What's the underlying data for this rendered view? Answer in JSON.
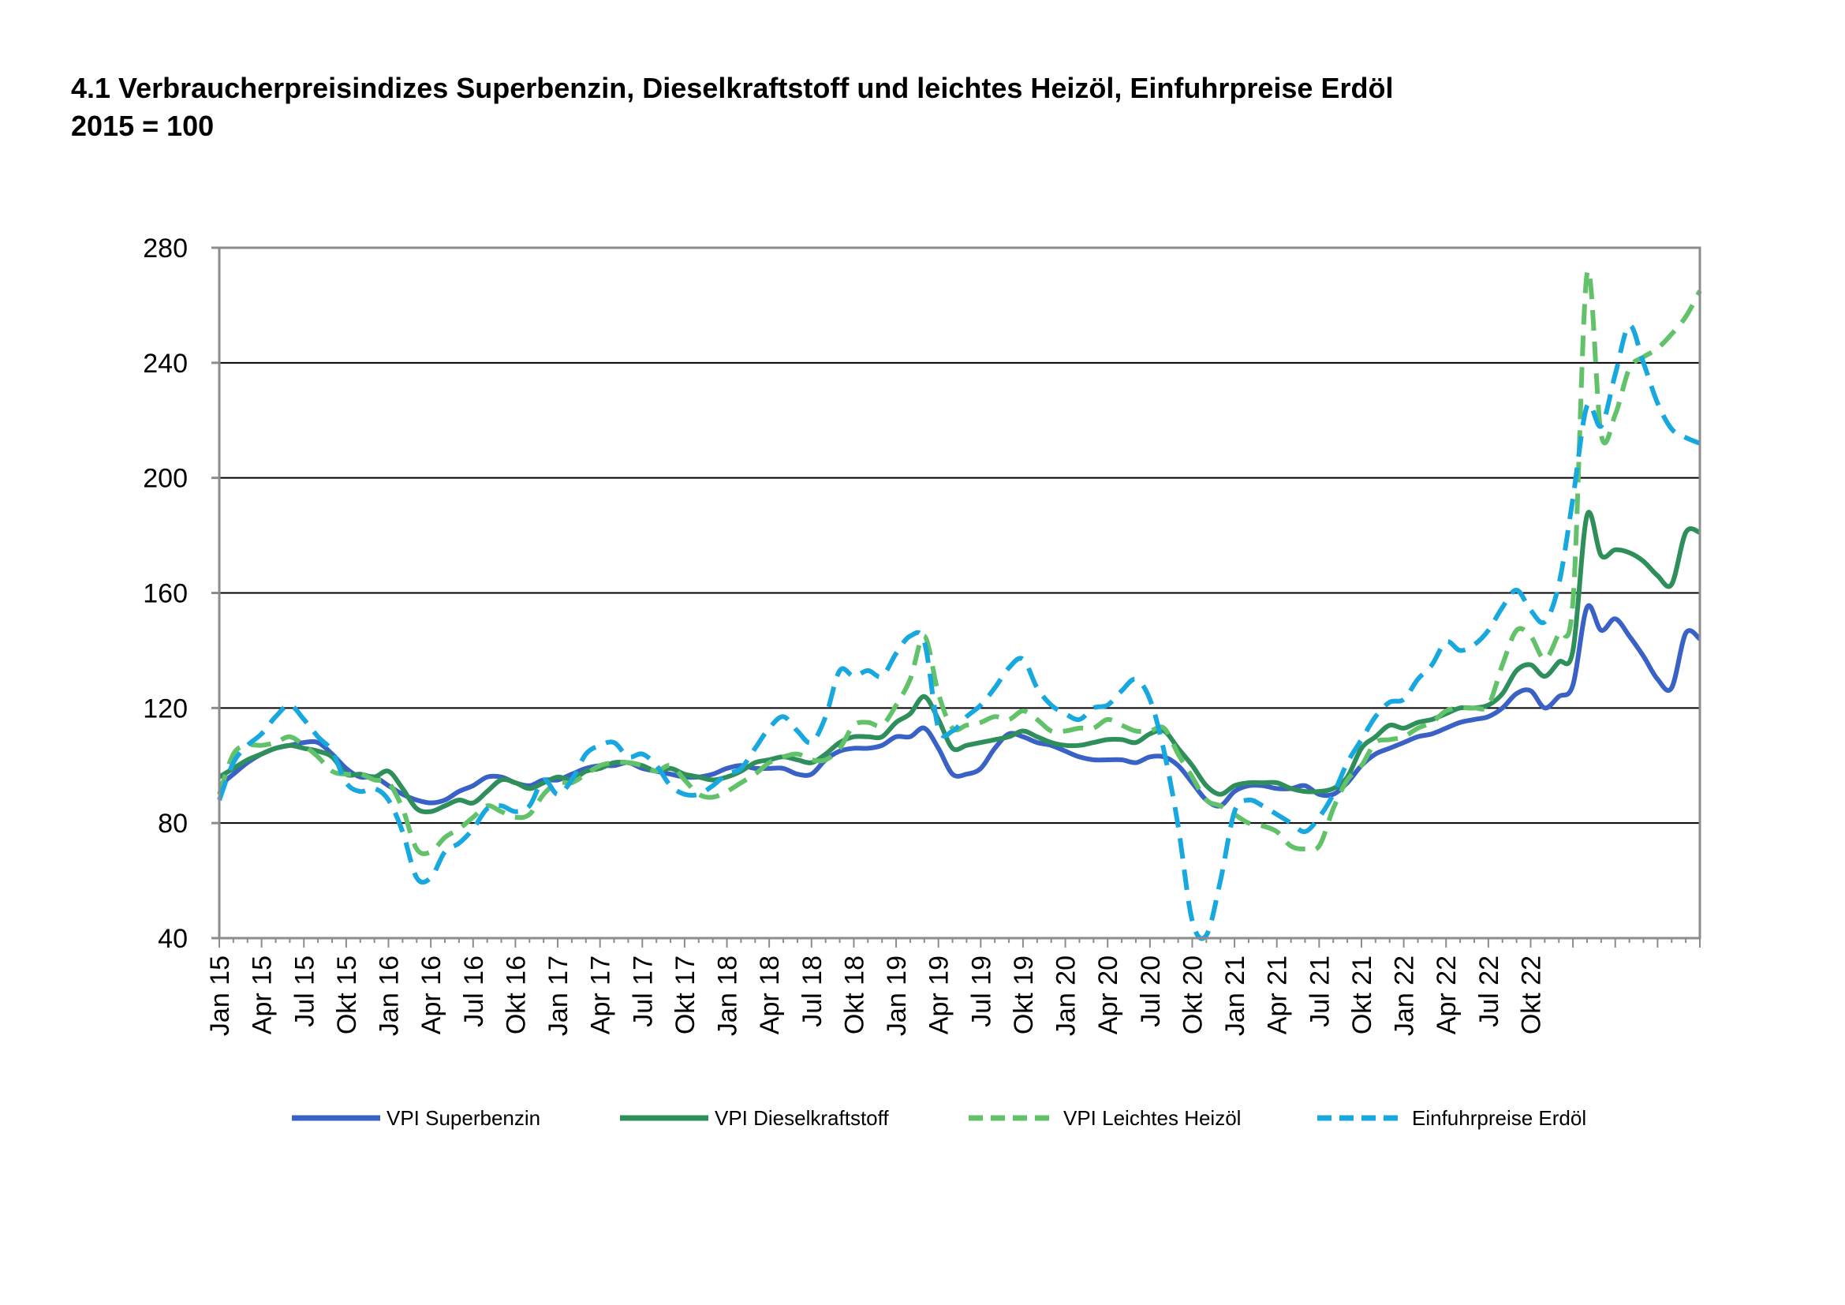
{
  "title": {
    "line1": "4.1 Verbraucherpreisindizes Superbenzin, Dieselkraftstoff und leichtes Heizöl, Einfuhrpreise Erdöl",
    "line2": "2015 = 100"
  },
  "chart_data": {
    "type": "line",
    "ylim": [
      40,
      280
    ],
    "yticks": [
      40,
      80,
      120,
      160,
      200,
      240,
      280
    ],
    "grid": true,
    "legend_position": "bottom",
    "x_tick_labels": [
      "Jan 15",
      "Apr 15",
      "Jul 15",
      "Okt 15",
      "Jan 16",
      "Apr 16",
      "Jul 16",
      "Okt 16",
      "Jan 17",
      "Apr 17",
      "Jul 17",
      "Okt 17",
      "Jan 18",
      "Apr 18",
      "Jul 18",
      "Okt 18",
      "Jan 19",
      "Apr 19",
      "Jul 19",
      "Okt 19",
      "Jan 20",
      "Apr 20",
      "Jul 20",
      "Okt 20",
      "Jan 21",
      "Apr 21",
      "Jul 21",
      "Okt 21",
      "Jan 22",
      "Apr 22",
      "Jul 22",
      "Okt 22"
    ],
    "series": [
      {
        "name": "VPI Superbenzin",
        "color": "#3a62c6",
        "dash": "solid",
        "values": [
          93,
          97,
          101,
          104,
          106,
          107,
          108,
          108,
          104,
          99,
          96,
          96,
          93,
          90,
          88,
          87,
          88,
          91,
          93,
          96,
          96,
          94,
          93,
          95,
          95,
          97,
          99,
          100,
          100,
          101,
          99,
          98,
          97,
          96,
          96,
          97,
          99,
          100,
          99,
          99,
          99,
          97,
          97,
          102,
          105,
          106,
          106,
          107,
          110,
          110,
          113,
          106,
          97,
          97,
          99,
          106,
          111,
          110,
          108,
          107,
          105,
          103,
          102,
          102,
          102,
          101,
          103,
          103,
          100,
          94,
          88,
          86,
          91,
          93,
          93,
          92,
          92,
          93,
          90,
          90,
          94,
          100,
          104,
          106,
          108,
          110,
          111,
          113,
          115,
          116,
          117,
          120,
          125,
          126,
          120,
          124,
          128,
          155,
          147,
          151,
          145,
          138,
          130,
          127,
          146,
          144
        ]
      },
      {
        "name": "VPI Dieselkraftstoff",
        "color": "#2f8f5b",
        "dash": "solid",
        "values": [
          96,
          99,
          102,
          104,
          106,
          107,
          106,
          105,
          103,
          97,
          97,
          96,
          98,
          92,
          85,
          84,
          86,
          88,
          87,
          91,
          95,
          94,
          92,
          94,
          96,
          95,
          98,
          99,
          101,
          101,
          100,
          98,
          99,
          97,
          96,
          95,
          96,
          98,
          101,
          102,
          103,
          102,
          101,
          104,
          108,
          110,
          110,
          110,
          115,
          118,
          124,
          116,
          106,
          107,
          108,
          109,
          110,
          112,
          110,
          108,
          107,
          107,
          108,
          109,
          109,
          108,
          111,
          112,
          106,
          100,
          93,
          90,
          93,
          94,
          94,
          94,
          92,
          91,
          91,
          92,
          96,
          106,
          110,
          114,
          113,
          115,
          116,
          118,
          120,
          120,
          121,
          125,
          133,
          135,
          131,
          136,
          140,
          187,
          173,
          175,
          174,
          171,
          166,
          163,
          181,
          181
        ]
      },
      {
        "name": "VPI Leichtes Heizöl",
        "color": "#61c269",
        "dash": "dash",
        "values": [
          90,
          104,
          107,
          107,
          108,
          110,
          107,
          103,
          98,
          97,
          97,
          95,
          94,
          85,
          71,
          70,
          75,
          78,
          82,
          86,
          84,
          82,
          83,
          90,
          94,
          94,
          97,
          100,
          101,
          101,
          100,
          98,
          100,
          95,
          90,
          89,
          91,
          94,
          97,
          101,
          103,
          104,
          102,
          102,
          106,
          114,
          115,
          114,
          121,
          130,
          145,
          125,
          113,
          114,
          115,
          117,
          116,
          119,
          116,
          112,
          112,
          113,
          113,
          116,
          114,
          112,
          112,
          113,
          104,
          96,
          88,
          86,
          83,
          80,
          79,
          77,
          72,
          71,
          72,
          85,
          95,
          100,
          108,
          109,
          110,
          113,
          115,
          119,
          120,
          120,
          121,
          135,
          147,
          145,
          137,
          146,
          157,
          271,
          215,
          222,
          238,
          242,
          245,
          250,
          256,
          265
        ]
      },
      {
        "name": "Einfuhrpreise Erdöl",
        "color": "#18a8e0",
        "dash": "dash",
        "values": [
          88,
          101,
          107,
          111,
          117,
          121,
          116,
          110,
          105,
          94,
          91,
          92,
          88,
          77,
          61,
          61,
          70,
          73,
          78,
          85,
          86,
          84,
          86,
          95,
          90,
          95,
          104,
          107,
          108,
          103,
          104,
          100,
          93,
          90,
          90,
          93,
          97,
          99,
          106,
          113,
          117,
          112,
          108,
          117,
          133,
          131,
          133,
          131,
          139,
          145,
          143,
          113,
          112,
          117,
          121,
          127,
          134,
          137,
          127,
          121,
          118,
          116,
          120,
          121,
          126,
          130,
          123,
          105,
          79,
          46,
          41,
          60,
          84,
          88,
          86,
          83,
          80,
          77,
          82,
          90,
          101,
          109,
          117,
          122,
          123,
          130,
          135,
          143,
          140,
          142,
          147,
          155,
          161,
          154,
          150,
          163,
          193,
          225,
          218,
          236,
          253,
          240,
          226,
          217,
          214,
          212
        ]
      }
    ]
  },
  "legend": {
    "items": [
      {
        "label": "VPI Superbenzin"
      },
      {
        "label": "VPI Dieselkraftstoff"
      },
      {
        "label": "VPI Leichtes Heizöl"
      },
      {
        "label": "Einfuhrpreise Erdöl"
      }
    ]
  }
}
